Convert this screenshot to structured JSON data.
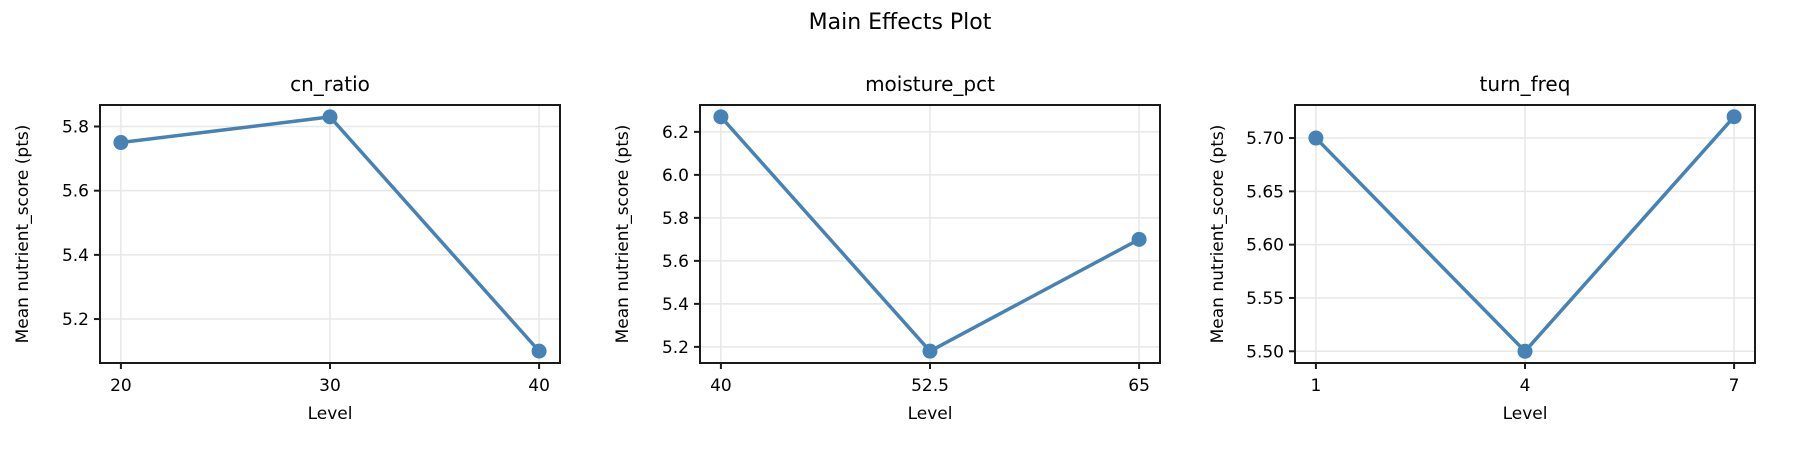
{
  "title": "Main Effects Plot",
  "style": {
    "line_color": "#4682B4",
    "marker_color": "#4682B4",
    "grid_color": "#e7e7e7",
    "spine_color": "#1a1a1a",
    "tick_color": "#1a1a1a",
    "text_color": "#000000",
    "background": "#ffffff"
  },
  "chart_data": [
    {
      "type": "line",
      "title": "cn_ratio",
      "xlabel": "Level",
      "ylabel": "Mean nutrient_score (pts)",
      "categories": [
        "20",
        "30",
        "40"
      ],
      "values": [
        5.75,
        5.83,
        5.1
      ],
      "yticks": [
        5.2,
        5.4,
        5.6,
        5.8
      ],
      "ytick_labels": [
        "5.2",
        "5.4",
        "5.6",
        "5.8"
      ],
      "ylim": [
        5.063,
        5.867
      ],
      "grid": true,
      "legend": false,
      "marker": "circle"
    },
    {
      "type": "line",
      "title": "moisture_pct",
      "xlabel": "Level",
      "ylabel": "Mean nutrient_score (pts)",
      "categories": [
        "40",
        "52.5",
        "65"
      ],
      "values": [
        6.27,
        5.18,
        5.7
      ],
      "yticks": [
        5.2,
        5.4,
        5.6,
        5.8,
        6.0,
        6.2
      ],
      "ytick_labels": [
        "5.2",
        "5.4",
        "5.6",
        "5.8",
        "6.0",
        "6.2"
      ],
      "ylim": [
        5.125,
        6.325
      ],
      "grid": true,
      "legend": false,
      "marker": "circle"
    },
    {
      "type": "line",
      "title": "turn_freq",
      "xlabel": "Level",
      "ylabel": "Mean nutrient_score (pts)",
      "categories": [
        "1",
        "4",
        "7"
      ],
      "values": [
        5.7,
        5.5,
        5.72
      ],
      "yticks": [
        5.5,
        5.55,
        5.6,
        5.65,
        5.7
      ],
      "ytick_labels": [
        "5.50",
        "5.55",
        "5.60",
        "5.65",
        "5.70"
      ],
      "ylim": [
        5.489,
        5.731
      ],
      "grid": true,
      "legend": false,
      "marker": "circle"
    }
  ]
}
